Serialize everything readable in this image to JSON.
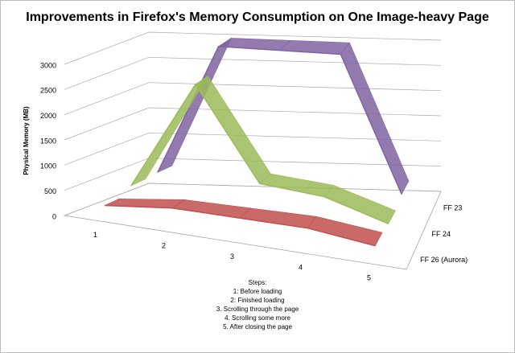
{
  "chart_data": {
    "type": "line3d",
    "title": "Improvements in Firefox's Memory Consumption on One Image-heavy Page",
    "y_label": "Physical Memory (MB)",
    "categories": [
      "1",
      "2",
      "3",
      "4",
      "5"
    ],
    "series": [
      {
        "name": "FF 23",
        "color": "#8064a2",
        "values": [
          420,
          3000,
          3000,
          3000,
          300
        ]
      },
      {
        "name": "FF 24",
        "color": "#9bbb59",
        "values": [
          400,
          2550,
          720,
          600,
          200
        ]
      },
      {
        "name": "FF 26 (Aurora)",
        "color": "#c0504d",
        "values": [
          250,
          400,
          400,
          400,
          250
        ]
      }
    ],
    "ylim": [
      0,
      3000
    ],
    "yticks": [
      0,
      500,
      1000,
      1500,
      2000,
      2500,
      3000
    ],
    "grid": true
  },
  "notes": [
    "Steps:",
    "1: Before loading",
    "2: Finished loading",
    "3. Scrolling through the page",
    "4. Scrolling some more",
    "5. After closing the page"
  ]
}
